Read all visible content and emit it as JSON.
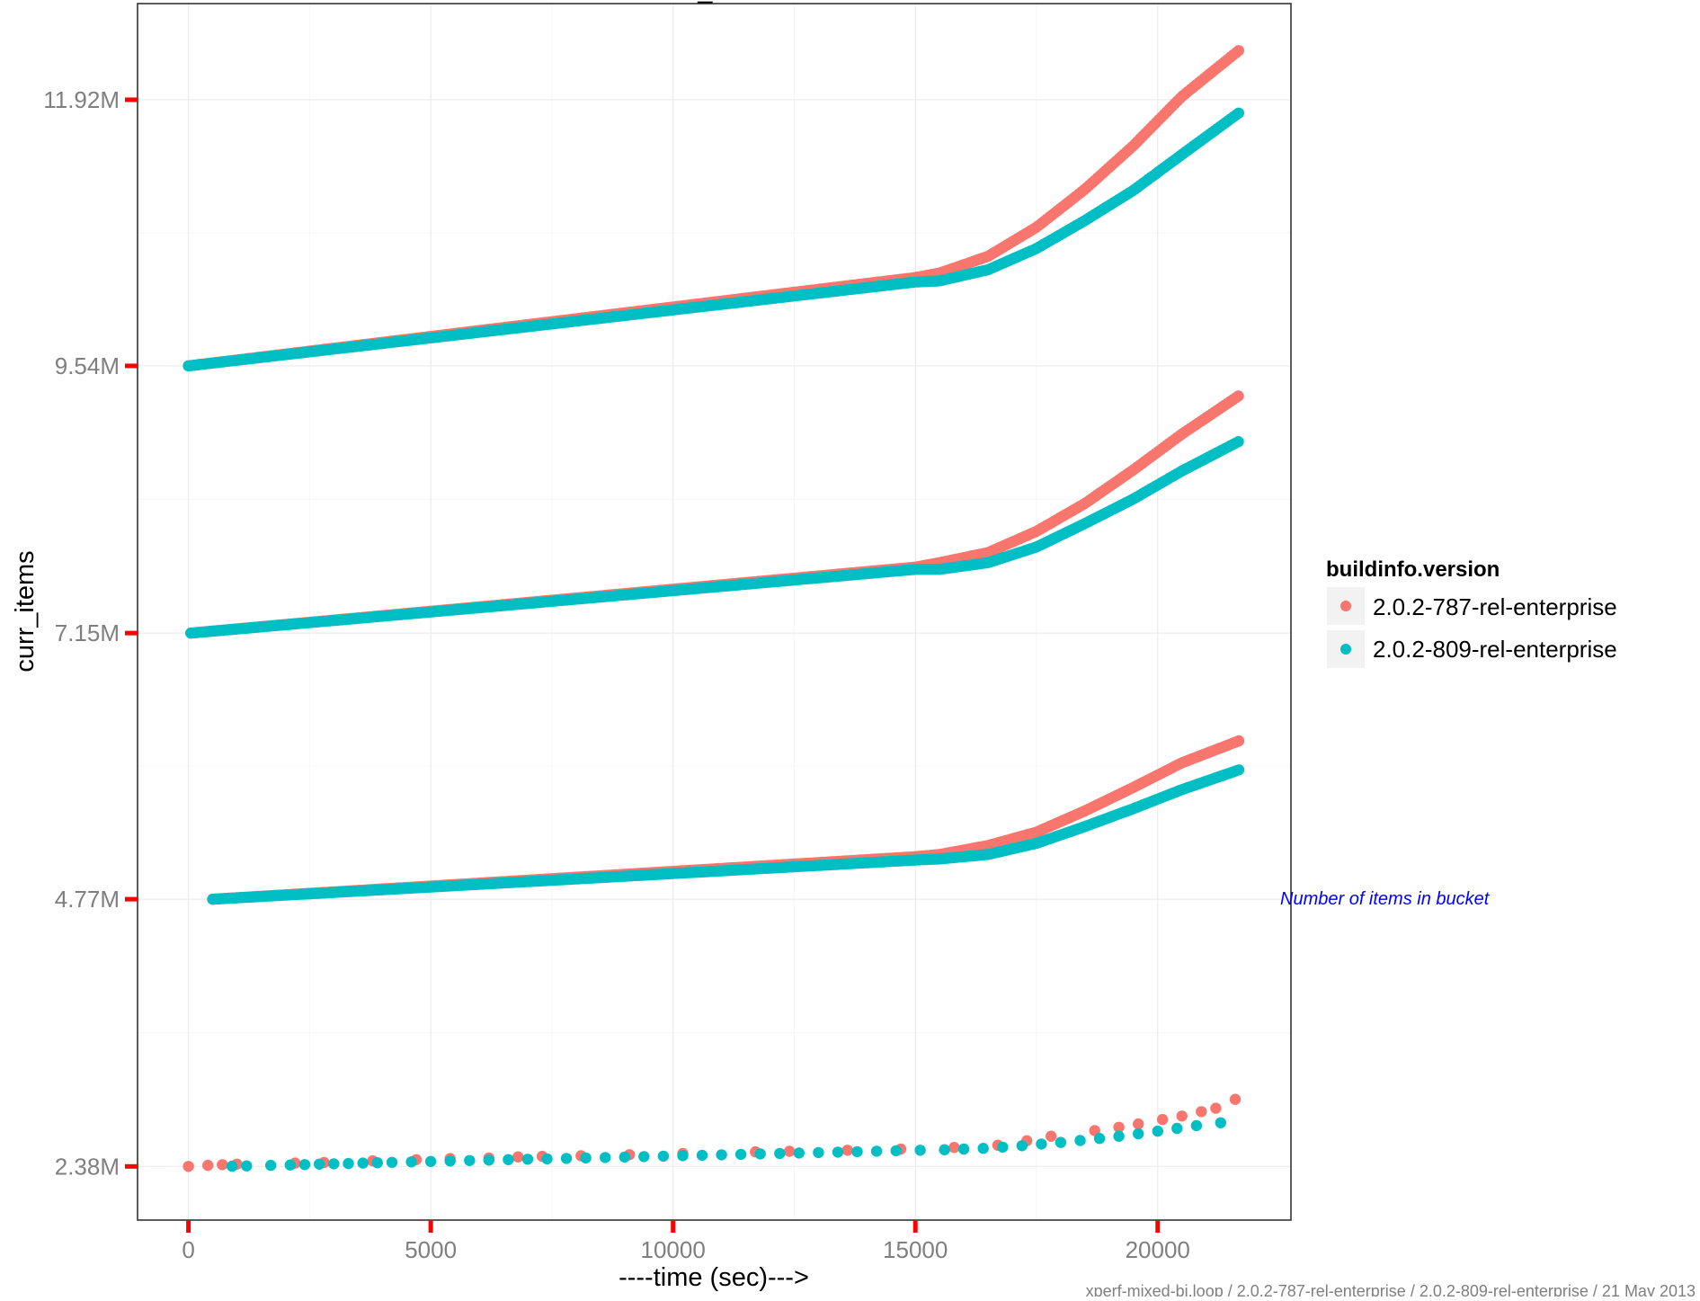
{
  "chart_data": {
    "type": "scatter",
    "title": "curr_items",
    "xlabel": "----time (sec)--->",
    "ylabel": "curr_items",
    "xlim": [
      -1050,
      22750
    ],
    "ylim": [
      1900000,
      12780000
    ],
    "x_ticks": [
      0,
      5000,
      10000,
      15000,
      20000
    ],
    "x_tick_labels": [
      "0",
      "5000",
      "10000",
      "15000",
      "20000"
    ],
    "y_ticks": [
      2380000,
      4770000,
      7150000,
      9540000,
      11920000
    ],
    "y_tick_labels": [
      "2.38M",
      "4.77M",
      "7.15M",
      "9.54M",
      "11.92M"
    ],
    "grid": true,
    "legend": {
      "title": "buildinfo.version",
      "position": "right"
    },
    "annotation": "Number of items in bucket",
    "caption": "xperf-mixed-bi.loop / 2.0.2-787-rel-enterprise / 2.0.2-809-rel-enterprise / 21 May 2013",
    "series": [
      {
        "name": "2.0.2-787-rel-enterprise",
        "color": "#f8766d",
        "point_mode": "dense",
        "traces": [
          {
            "x": [
              0,
              15000,
              15500,
              16500,
              17500,
              18500,
              19500,
              20500,
              21700
            ],
            "y": [
              9540000,
              10330000,
              10370000,
              10520000,
              10780000,
              11120000,
              11510000,
              11950000,
              12370000
            ]
          },
          {
            "x": [
              50,
              15000,
              15500,
              16500,
              17500,
              18500,
              19500,
              20500,
              21700
            ],
            "y": [
              7150000,
              7740000,
              7780000,
              7870000,
              8060000,
              8310000,
              8610000,
              8930000,
              9280000
            ]
          },
          {
            "x": [
              500,
              15000,
              15500,
              16500,
              17500,
              18500,
              19500,
              20500,
              21700
            ],
            "y": [
              4770000,
              5150000,
              5170000,
              5250000,
              5370000,
              5560000,
              5770000,
              5990000,
              6190000
            ]
          }
        ]
      },
      {
        "name": "2.0.2-809-rel-enterprise",
        "color": "#00bfc4",
        "point_mode": "dense",
        "traces": [
          {
            "x": [
              0,
              15000,
              15500,
              16500,
              17500,
              18500,
              19500,
              20500,
              21700
            ],
            "y": [
              9540000,
              10290000,
              10300000,
              10400000,
              10590000,
              10840000,
              11110000,
              11430000,
              11810000
            ]
          },
          {
            "x": [
              50,
              15000,
              15500,
              16500,
              17500,
              18500,
              19500,
              20500,
              21700
            ],
            "y": [
              7150000,
              7720000,
              7720000,
              7780000,
              7920000,
              8130000,
              8350000,
              8600000,
              8870000
            ]
          },
          {
            "x": [
              500,
              15000,
              15500,
              16500,
              17500,
              18500,
              19500,
              20500,
              21700
            ],
            "y": [
              4770000,
              5120000,
              5130000,
              5170000,
              5270000,
              5420000,
              5580000,
              5750000,
              5930000
            ]
          }
        ]
      }
    ],
    "sparse_series": [
      {
        "name": "2.0.2-787-rel-enterprise",
        "color": "#f8766d",
        "x": [
          0,
          400,
          700,
          1000,
          2200,
          2800,
          3800,
          4700,
          5400,
          6200,
          6800,
          7300,
          8100,
          9100,
          10200,
          11700,
          12400,
          13600,
          14700,
          15800,
          16700,
          17300,
          17800,
          18700,
          19200,
          19600,
          20100,
          20500,
          20900,
          21200,
          21600
        ],
        "y": [
          2380000,
          2390000,
          2395000,
          2400000,
          2410000,
          2415000,
          2430000,
          2440000,
          2450000,
          2455000,
          2465000,
          2470000,
          2475000,
          2485000,
          2495000,
          2510000,
          2515000,
          2525000,
          2535000,
          2550000,
          2570000,
          2610000,
          2650000,
          2700000,
          2730000,
          2760000,
          2800000,
          2830000,
          2870000,
          2900000,
          2980000
        ]
      },
      {
        "name": "2.0.2-809-rel-enterprise",
        "color": "#00bfc4",
        "x": [
          900,
          1200,
          1700,
          2100,
          2400,
          2700,
          3000,
          3300,
          3600,
          3900,
          4200,
          4600,
          5000,
          5400,
          5800,
          6200,
          6600,
          7000,
          7400,
          7800,
          8200,
          8600,
          9000,
          9400,
          9800,
          10200,
          10600,
          11000,
          11400,
          11800,
          12200,
          12600,
          13000,
          13400,
          13800,
          14200,
          14600,
          15100,
          15600,
          16000,
          16400,
          16800,
          17200,
          17600,
          18000,
          18400,
          18800,
          19200,
          19600,
          20000,
          20400,
          20800,
          21300
        ],
        "y": [
          2382000,
          2385000,
          2390000,
          2393000,
          2396000,
          2400000,
          2403000,
          2406000,
          2410000,
          2413000,
          2416000,
          2420000,
          2424000,
          2428000,
          2432000,
          2436000,
          2440000,
          2444000,
          2448000,
          2452000,
          2456000,
          2460000,
          2464000,
          2468000,
          2472000,
          2476000,
          2480000,
          2484000,
          2488000,
          2492000,
          2496000,
          2500000,
          2504000,
          2508000,
          2512000,
          2516000,
          2520000,
          2525000,
          2530000,
          2535000,
          2542000,
          2552000,
          2565000,
          2580000,
          2595000,
          2612000,
          2630000,
          2650000,
          2672000,
          2695000,
          2720000,
          2745000,
          2770000
        ]
      }
    ]
  }
}
